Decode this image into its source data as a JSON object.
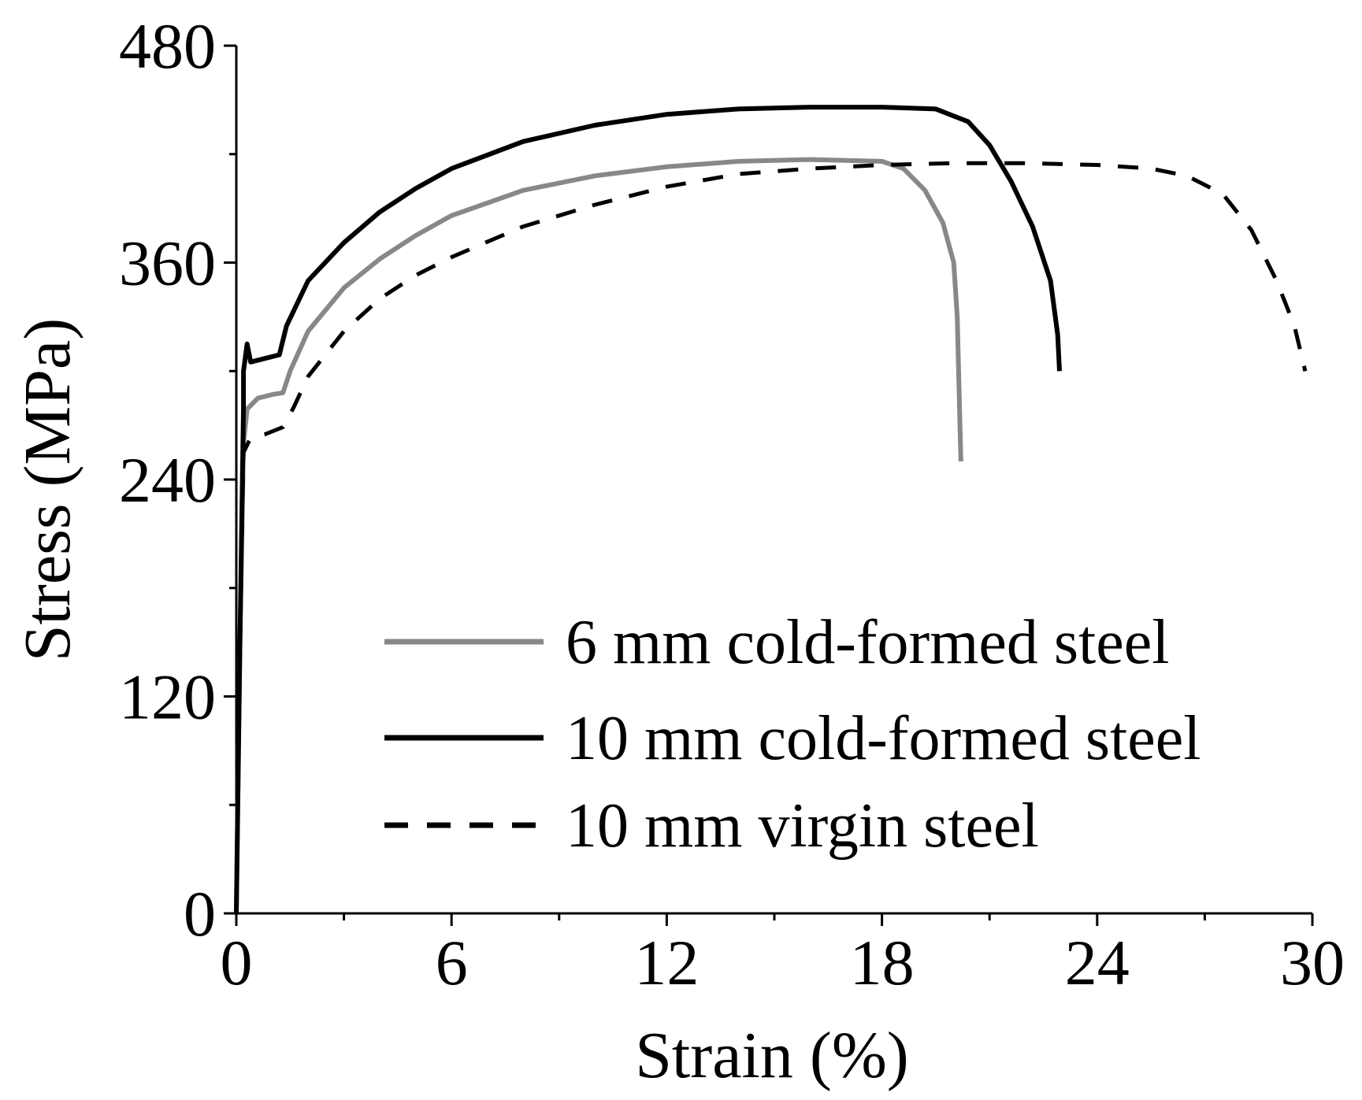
{
  "chart_data": {
    "type": "line",
    "title": "",
    "xlabel": "Strain (%)",
    "ylabel": "Stress (MPa)",
    "xlim": [
      0,
      30
    ],
    "ylim": [
      0,
      480
    ],
    "x_ticks": [
      0,
      6,
      12,
      18,
      24,
      30
    ],
    "y_ticks": [
      0,
      120,
      240,
      360,
      480
    ],
    "x_minor_step": 3,
    "y_minor_step": 60,
    "grid": false,
    "legend_position": "bottom-right",
    "series": [
      {
        "name": "6 mm cold-formed steel",
        "color": "#888888",
        "style": "solid",
        "points": [
          [
            0,
            0
          ],
          [
            0.1,
            150
          ],
          [
            0.2,
            260
          ],
          [
            0.3,
            279
          ],
          [
            0.6,
            285
          ],
          [
            1.0,
            287
          ],
          [
            1.3,
            288
          ],
          [
            1.5,
            300
          ],
          [
            2.0,
            322
          ],
          [
            3.0,
            346
          ],
          [
            4.0,
            362
          ],
          [
            5.0,
            375
          ],
          [
            6.0,
            386
          ],
          [
            8.0,
            400
          ],
          [
            10.0,
            408
          ],
          [
            12.0,
            413
          ],
          [
            14.0,
            416
          ],
          [
            16.0,
            417
          ],
          [
            18.0,
            416
          ],
          [
            18.6,
            412
          ],
          [
            19.2,
            400
          ],
          [
            19.7,
            382
          ],
          [
            20.0,
            360
          ],
          [
            20.1,
            330
          ],
          [
            20.15,
            290
          ],
          [
            20.2,
            250
          ]
        ]
      },
      {
        "name": "10 mm cold-formed steel",
        "color": "#000000",
        "style": "solid",
        "points": [
          [
            0,
            0
          ],
          [
            0.1,
            150
          ],
          [
            0.2,
            280
          ],
          [
            0.2,
            300
          ],
          [
            0.3,
            315
          ],
          [
            0.4,
            305
          ],
          [
            0.8,
            307
          ],
          [
            1.2,
            309
          ],
          [
            1.4,
            325
          ],
          [
            2.0,
            350
          ],
          [
            3.0,
            371
          ],
          [
            4.0,
            388
          ],
          [
            5.0,
            401
          ],
          [
            6.0,
            412
          ],
          [
            8.0,
            427
          ],
          [
            10.0,
            436
          ],
          [
            12.0,
            442
          ],
          [
            14.0,
            445
          ],
          [
            16.0,
            446
          ],
          [
            18.0,
            446
          ],
          [
            19.5,
            445
          ],
          [
            20.4,
            438
          ],
          [
            21.0,
            425
          ],
          [
            21.6,
            405
          ],
          [
            22.2,
            380
          ],
          [
            22.7,
            350
          ],
          [
            22.9,
            320
          ],
          [
            22.95,
            300
          ]
        ]
      },
      {
        "name": "10 mm virgin steel",
        "color": "#000000",
        "style": "dashed",
        "points": [
          [
            0,
            0
          ],
          [
            0.1,
            150
          ],
          [
            0.2,
            255
          ],
          [
            0.4,
            263
          ],
          [
            0.8,
            265
          ],
          [
            1.3,
            269
          ],
          [
            1.6,
            280
          ],
          [
            2.0,
            297
          ],
          [
            3.0,
            322
          ],
          [
            4.0,
            340
          ],
          [
            5.0,
            353
          ],
          [
            6.0,
            363
          ],
          [
            8.0,
            380
          ],
          [
            10.0,
            392
          ],
          [
            12.0,
            402
          ],
          [
            14.0,
            409
          ],
          [
            16.0,
            412
          ],
          [
            18.0,
            414
          ],
          [
            20.0,
            415
          ],
          [
            22.0,
            415
          ],
          [
            24.0,
            414
          ],
          [
            25.5,
            412
          ],
          [
            26.5,
            408
          ],
          [
            27.5,
            398
          ],
          [
            28.3,
            378
          ],
          [
            29.0,
            350
          ],
          [
            29.5,
            325
          ],
          [
            29.8,
            300
          ]
        ]
      }
    ]
  }
}
